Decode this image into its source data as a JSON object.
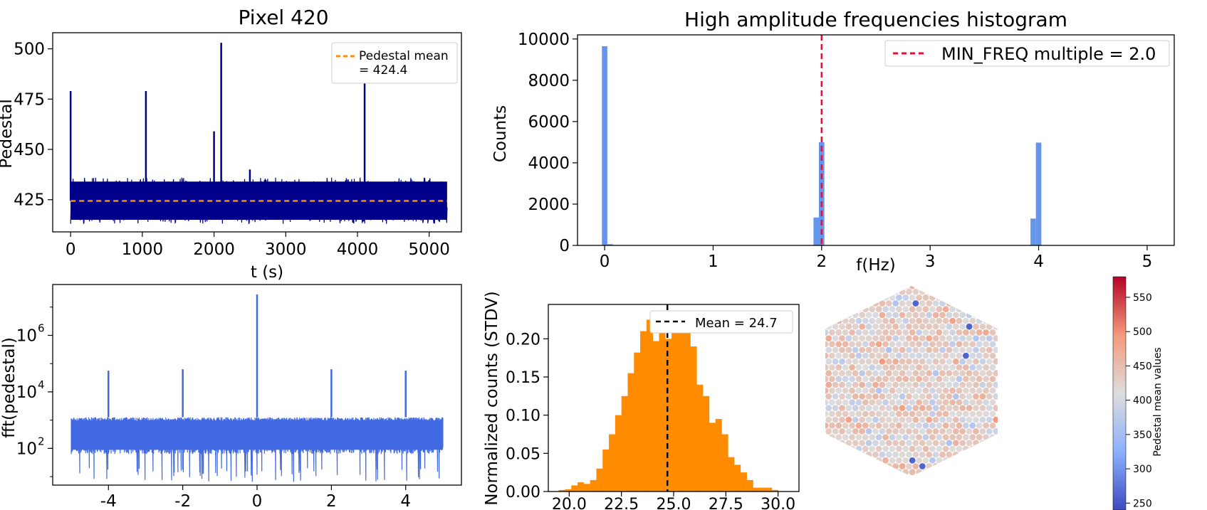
{
  "chart_data": [
    {
      "type": "line",
      "title": "Pixel 420",
      "xlabel": "t (s)",
      "ylabel": "Pedestal",
      "xlim": [
        -250,
        5450
      ],
      "ylim": [
        409,
        508
      ],
      "xticks": [
        0,
        1000,
        2000,
        3000,
        4000,
        5000
      ],
      "xtick_labels": [
        "0",
        "1000",
        "2000",
        "3000",
        "4000",
        "5000"
      ],
      "yticks": [
        425,
        450,
        475,
        500
      ],
      "ytick_labels": [
        "425",
        "450",
        "475",
        "500"
      ],
      "series": [
        {
          "color": "#00008b",
          "noise_band": {
            "x_range": [
              0,
              5250
            ],
            "mean": 424.4,
            "min": 413,
            "max": 436
          },
          "spikes": [
            {
              "x": 0,
              "y": 479
            },
            {
              "x": 1050,
              "y": 479
            },
            {
              "x": 2000,
              "y": 459
            },
            {
              "x": 2100,
              "y": 503
            },
            {
              "x": 2500,
              "y": 440
            },
            {
              "x": 4100,
              "y": 500
            }
          ]
        }
      ],
      "reference_line": {
        "y": 424.4,
        "color": "#ff8c00",
        "style": "dashed"
      },
      "legend": {
        "position": "top-right",
        "entries": [
          "Pedestal mean",
          "= 424.4"
        ]
      }
    },
    {
      "type": "bar",
      "title": "High amplitude frequencies histogram",
      "xlabel": "f(Hz)",
      "ylabel": "Counts",
      "xlim": [
        -0.25,
        5.25
      ],
      "ylim": [
        0,
        10200
      ],
      "xticks": [
        0,
        1,
        2,
        3,
        4,
        5
      ],
      "xtick_labels": [
        "0",
        "1",
        "2",
        "3",
        "4",
        "5"
      ],
      "yticks": [
        0,
        2000,
        4000,
        6000,
        8000,
        10000
      ],
      "ytick_labels": [
        "0",
        "2000",
        "4000",
        "6000",
        "8000",
        "10000"
      ],
      "bar_color": "#6495ed",
      "bars": [
        {
          "x": 0.0,
          "value": 9650
        },
        {
          "x": 0.05,
          "value": 60
        },
        {
          "x": 1.95,
          "value": 1350
        },
        {
          "x": 2.0,
          "value": 5000
        },
        {
          "x": 3.95,
          "value": 1300
        },
        {
          "x": 4.0,
          "value": 4980
        }
      ],
      "reference_line": {
        "x": 2.0,
        "color": "#dc143c",
        "style": "dashed"
      },
      "legend": {
        "position": "top-right",
        "entries": [
          "MIN_FREQ multiple = 2.0"
        ]
      }
    },
    {
      "type": "line",
      "xlabel": "",
      "ylabel": "fft(pedestal)",
      "yscale": "log",
      "xlim": [
        -5.5,
        5.5
      ],
      "ylim_log10": [
        0.7,
        7.8
      ],
      "xticks": [
        -4,
        -2,
        0,
        2,
        4
      ],
      "xtick_labels": [
        "-4",
        "-2",
        "0",
        "2",
        "4"
      ],
      "yticks_log10": [
        2,
        4,
        6
      ],
      "ytick_labels": [
        "10",
        "10",
        "10"
      ],
      "ytick_exponents": [
        "2",
        "4",
        "6"
      ],
      "series": [
        {
          "color": "#4169e1",
          "noise_band_log10": {
            "x_range": [
              -5,
              5
            ],
            "min": 1.6,
            "max": 3.1
          },
          "spikes": [
            {
              "x": -4,
              "y": 4.75
            },
            {
              "x": -2,
              "y": 4.8
            },
            {
              "x": 0,
              "y": 7.45
            },
            {
              "x": 2,
              "y": 4.8
            },
            {
              "x": 4,
              "y": 4.75
            }
          ]
        }
      ]
    },
    {
      "type": "bar",
      "ylabel": "Normalized counts (STDV)",
      "xlim": [
        19.0,
        31.0
      ],
      "ylim": [
        0,
        0.245
      ],
      "xticks": [
        20.0,
        22.5,
        25.0,
        27.5,
        30.0
      ],
      "xtick_labels": [
        "20.0",
        "22.5",
        "25.0",
        "27.5",
        "30.0"
      ],
      "yticks": [
        0.0,
        0.05,
        0.1,
        0.15,
        0.2
      ],
      "ytick_labels": [
        "0.00",
        "0.05",
        "0.10",
        "0.15",
        "0.20"
      ],
      "bar_color": "#ff8c00",
      "bin_edges": [
        19.5,
        19.8,
        20.1,
        20.4,
        20.7,
        21.0,
        21.3,
        21.6,
        21.9,
        22.2,
        22.5,
        22.8,
        23.1,
        23.4,
        23.7,
        24.0,
        24.3,
        24.6,
        24.9,
        25.2,
        25.5,
        25.8,
        26.1,
        26.4,
        26.7,
        27.0,
        27.3,
        27.6,
        27.9,
        28.2,
        28.5,
        28.8,
        29.1,
        29.4,
        29.7,
        30.0
      ],
      "values": [
        0.002,
        0.003,
        0.008,
        0.012,
        0.01,
        0.015,
        0.03,
        0.055,
        0.075,
        0.1,
        0.125,
        0.155,
        0.182,
        0.21,
        0.225,
        0.197,
        0.213,
        0.2,
        0.225,
        0.213,
        0.235,
        0.19,
        0.14,
        0.125,
        0.09,
        0.095,
        0.075,
        0.045,
        0.035,
        0.025,
        0.015,
        0.005,
        0.005,
        0.005,
        0.002
      ],
      "mean_line": {
        "x": 24.7,
        "color": "#000000",
        "style": "dashed"
      },
      "legend": {
        "position": "top-right",
        "entries": [
          "Mean = 24.7"
        ]
      }
    },
    {
      "type": "heatmap",
      "shape": "hexagonal camera",
      "colormap": "coolwarm",
      "colorbar_label": "Pedestal mean values",
      "vmin": 240,
      "vmax": 580,
      "colorbar_ticks": [
        250,
        300,
        350,
        400,
        450,
        500,
        550
      ],
      "colorbar_tick_labels": [
        "250",
        "300",
        "350",
        "400",
        "450",
        "500",
        "550"
      ],
      "center_value": 424
    }
  ]
}
